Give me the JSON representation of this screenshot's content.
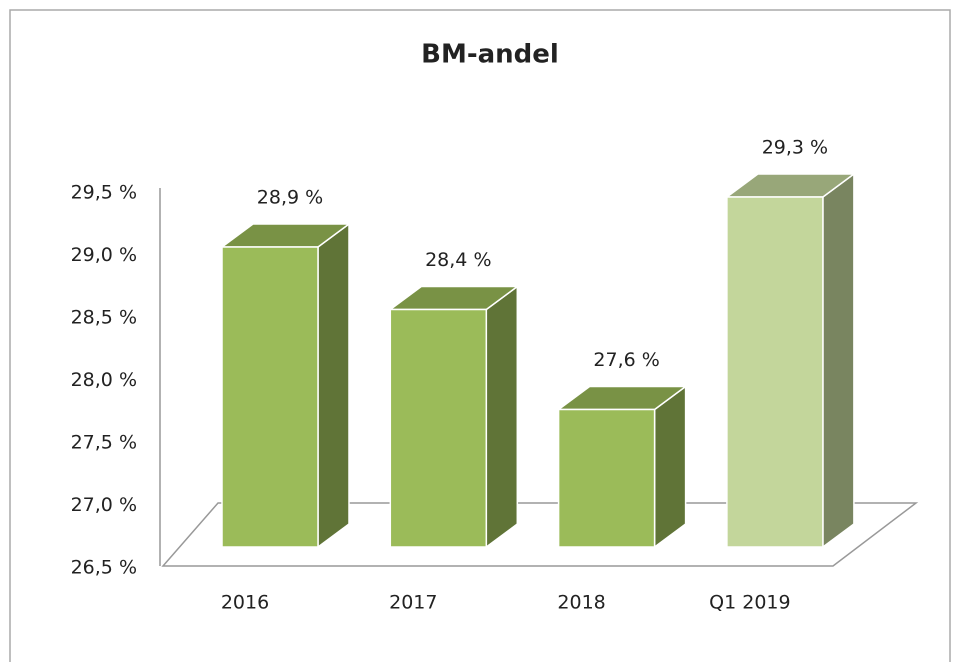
{
  "chart_data": {
    "type": "bar3d",
    "title": "BM-andel",
    "categories": [
      "2016",
      "2017",
      "2018",
      "Q1 2019"
    ],
    "values": [
      28.9,
      28.4,
      27.6,
      29.3
    ],
    "value_labels": [
      "28,9 %",
      "28,4 %",
      "27,6 %",
      "29,3 %"
    ],
    "colors": [
      "#9bbb59",
      "#9bbb59",
      "#9bbb59",
      "#c3d69b"
    ],
    "ylim": [
      26.5,
      29.5
    ],
    "yticks": [
      {
        "value": 26.5,
        "label": "26,5 %"
      },
      {
        "value": 27.0,
        "label": "27,0 %"
      },
      {
        "value": 27.5,
        "label": "27,5 %"
      },
      {
        "value": 28.0,
        "label": "28,0 %"
      },
      {
        "value": 28.5,
        "label": "28,5 %"
      },
      {
        "value": 29.0,
        "label": "29,0 %"
      },
      {
        "value": 29.5,
        "label": "29,5 %"
      }
    ]
  }
}
